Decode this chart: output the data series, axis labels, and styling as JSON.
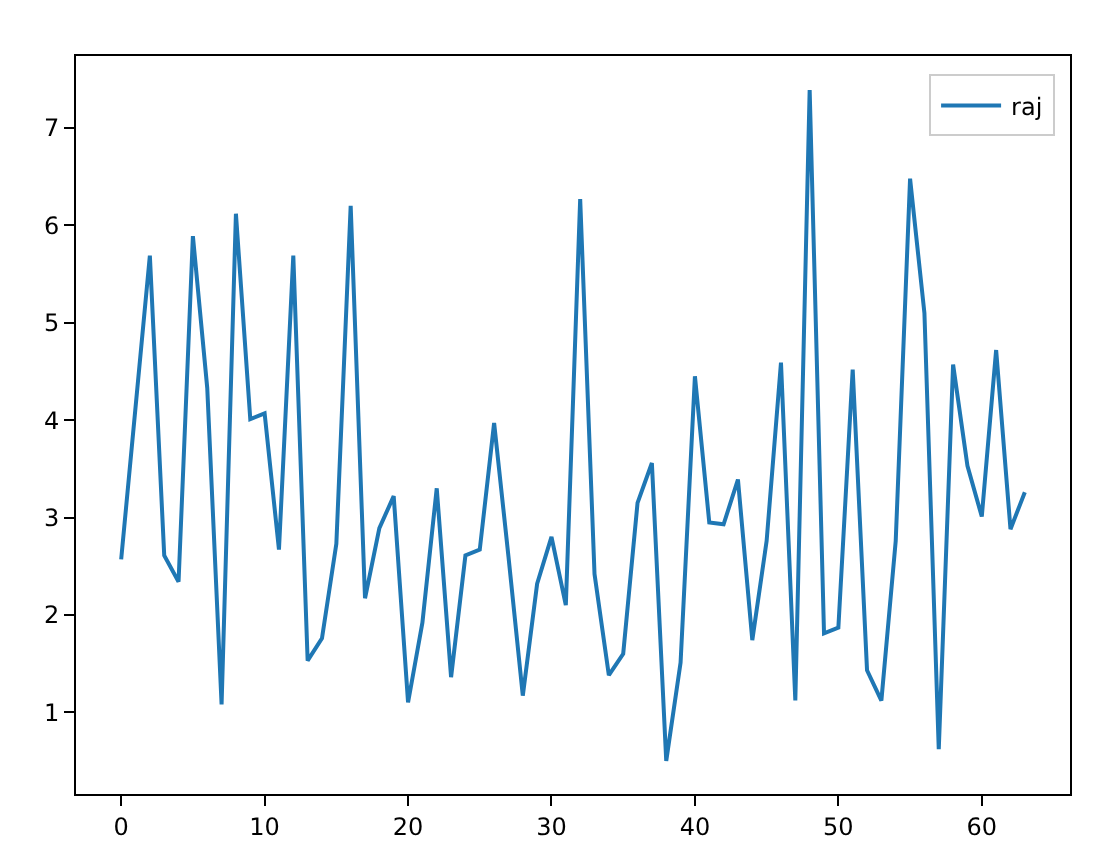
{
  "chart_data": {
    "type": "line",
    "x": [
      0,
      1,
      2,
      3,
      4,
      5,
      6,
      7,
      8,
      9,
      10,
      11,
      12,
      13,
      14,
      15,
      16,
      17,
      18,
      19,
      20,
      21,
      22,
      23,
      24,
      25,
      26,
      27,
      28,
      29,
      30,
      31,
      32,
      33,
      34,
      35,
      36,
      37,
      38,
      39,
      40,
      41,
      42,
      43,
      44,
      45,
      46,
      47,
      48,
      49,
      50,
      51,
      52,
      53,
      54,
      55,
      56,
      57,
      58,
      59,
      60,
      61,
      62,
      63
    ],
    "series": [
      {
        "name": "raj",
        "color": "#1f77b4",
        "values": [
          2.57,
          4.13,
          5.69,
          2.61,
          2.34,
          5.89,
          4.33,
          1.08,
          6.12,
          4.01,
          4.07,
          2.67,
          5.69,
          1.53,
          1.76,
          2.73,
          6.2,
          2.17,
          2.89,
          3.22,
          1.1,
          1.92,
          3.3,
          1.36,
          2.61,
          2.67,
          3.97,
          2.6,
          1.17,
          2.32,
          2.8,
          2.1,
          6.27,
          2.42,
          1.38,
          1.6,
          3.15,
          3.56,
          0.5,
          1.51,
          4.45,
          2.95,
          2.93,
          3.39,
          1.74,
          2.76,
          4.59,
          1.12,
          7.39,
          1.81,
          1.87,
          4.52,
          1.43,
          1.12,
          2.76,
          6.48,
          5.1,
          0.62,
          4.57,
          3.53,
          3.01,
          4.72,
          2.88,
          3.26
        ]
      }
    ],
    "xlim": [
      -3.15,
      66.15
    ],
    "ylim": [
      0.16,
      7.74
    ],
    "xticks": [
      0,
      10,
      20,
      30,
      40,
      50,
      60
    ],
    "yticks": [
      1,
      2,
      3,
      4,
      5,
      6,
      7
    ],
    "legend": "top right",
    "marker": "none",
    "line_style": "solid"
  }
}
